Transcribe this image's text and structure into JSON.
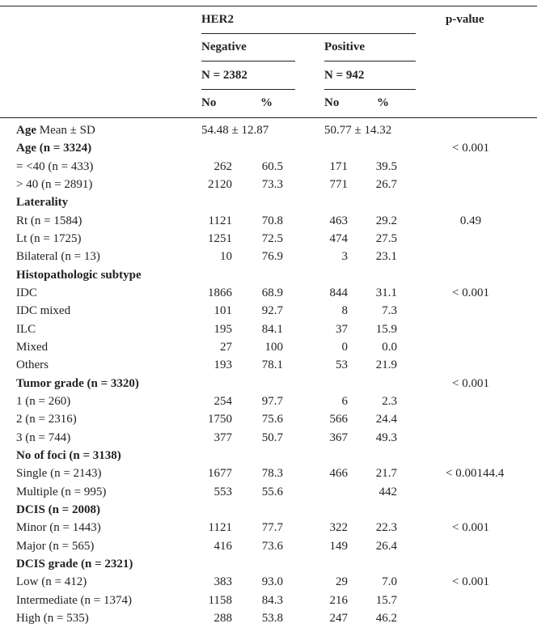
{
  "header": {
    "her2": "HER2",
    "p": "p-value",
    "negative": "Negative",
    "positive": "Positive",
    "n_neg": "N = 2382",
    "n_pos": "N = 942",
    "no_neg": "No",
    "pct_neg": "%",
    "no_pos": "No",
    "pct_pos": "%"
  },
  "rows": [
    {
      "bold": "Age",
      "text": "Mean ± SD",
      "neg": "54.48 ± 12.87",
      "pos": "50.77 ± 14.32"
    },
    {
      "bold": "Age (n = 3324)",
      "p": "< 0.001"
    },
    {
      "text": "= <40 (n = 433)",
      "neg_no": "262",
      "neg_pct": "60.5",
      "pos_no": "171",
      "pos_pct": "39.5"
    },
    {
      "text": "> 40 (n = 2891)",
      "neg_no": "2120",
      "neg_pct": "73.3",
      "pos_no": "771",
      "pos_pct": "26.7"
    },
    {
      "bold": "Laterality"
    },
    {
      "text": "Rt (n = 1584)",
      "neg_no": "1121",
      "neg_pct": "70.8",
      "pos_no": "463",
      "pos_pct": "29.2",
      "p": "0.49"
    },
    {
      "text": "Lt (n = 1725)",
      "neg_no": "1251",
      "neg_pct": "72.5",
      "pos_no": "474",
      "pos_pct": "27.5"
    },
    {
      "text": "Bilateral (n = 13)",
      "neg_no": "10",
      "neg_pct": "76.9",
      "pos_no": "3",
      "pos_pct": "23.1"
    },
    {
      "bold": "Histopathologic subtype"
    },
    {
      "text": "IDC",
      "neg_no": "1866",
      "neg_pct": "68.9",
      "pos_no": "844",
      "pos_pct": "31.1",
      "p": "< 0.001"
    },
    {
      "text": "IDC mixed",
      "neg_no": "101",
      "neg_pct": "92.7",
      "pos_no": "8",
      "pos_pct": "7.3"
    },
    {
      "text": "ILC",
      "neg_no": "195",
      "neg_pct": "84.1",
      "pos_no": "37",
      "pos_pct": "15.9"
    },
    {
      "text": "Mixed",
      "neg_no": "27",
      "neg_pct": "100",
      "pos_no": "0",
      "pos_pct": "0.0"
    },
    {
      "text": "Others",
      "neg_no": "193",
      "neg_pct": "78.1",
      "pos_no": "53",
      "pos_pct": "21.9"
    },
    {
      "bold": "Tumor grade (n = 3320)",
      "p": "< 0.001"
    },
    {
      "text": "1 (n = 260)",
      "neg_no": "254",
      "neg_pct": "97.7",
      "pos_no": "6",
      "pos_pct": "2.3"
    },
    {
      "text": "2 (n = 2316)",
      "neg_no": "1750",
      "neg_pct": "75.6",
      "pos_no": "566",
      "pos_pct": "24.4"
    },
    {
      "text": "3 (n = 744)",
      "neg_no": "377",
      "neg_pct": "50.7",
      "pos_no": "367",
      "pos_pct": "49.3"
    },
    {
      "bold": "No of foci (n = 3138)"
    },
    {
      "text": "Single (n = 2143)",
      "neg_no": "1677",
      "neg_pct": "78.3",
      "pos_no": "466",
      "pos_pct": "21.7",
      "p": "< 0.00144.4"
    },
    {
      "text": "Multiple (n = 995)",
      "neg_no": "553",
      "neg_pct": "55.6",
      "pos_pct": "442"
    },
    {
      "bold": "DCIS (n = 2008)"
    },
    {
      "text": "Minor (n = 1443)",
      "neg_no": "1121",
      "neg_pct": "77.7",
      "pos_no": "322",
      "pos_pct": "22.3",
      "p": "< 0.001"
    },
    {
      "text": "Major (n = 565)",
      "neg_no": "416",
      "neg_pct": "73.6",
      "pos_no": "149",
      "pos_pct": "26.4"
    },
    {
      "bold": "DCIS grade (n = 2321)"
    },
    {
      "text": "Low (n = 412)",
      "neg_no": "383",
      "neg_pct": "93.0",
      "pos_no": "29",
      "pos_pct": "7.0",
      "p": "< 0.001"
    },
    {
      "text": "Intermediate (n = 1374)",
      "neg_no": "1158",
      "neg_pct": "84.3",
      "pos_no": "216",
      "pos_pct": "15.7"
    },
    {
      "text": "High (n = 535)",
      "neg_no": "288",
      "neg_pct": "53.8",
      "pos_no": "247",
      "pos_pct": "46.2"
    }
  ]
}
